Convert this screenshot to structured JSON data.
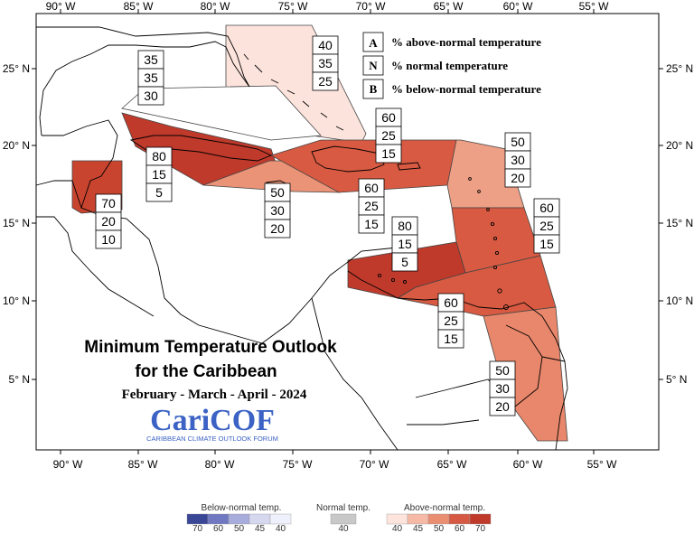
{
  "map": {
    "title_line1": "Minimum Temperature Outlook",
    "title_line2": "for the Caribbean",
    "period": "February - March - April - 2024",
    "logo": {
      "name": "CariCOF",
      "subtitle": "CARIBBEAN CLIMATE OUTLOOK FORUM"
    },
    "axes": {
      "lon_labels": [
        "90° W",
        "85° W",
        "80° W",
        "75° W",
        "70° W",
        "65° W",
        "60° W",
        "55° W"
      ],
      "lat_labels": [
        "25° N",
        "20° N",
        "15° N",
        "10° N",
        "5° N"
      ]
    },
    "key": [
      {
        "letter": "A",
        "text": "% above-normal temperature"
      },
      {
        "letter": "N",
        "text": "% normal temperature"
      },
      {
        "letter": "B",
        "text": "% below-normal temperature"
      }
    ],
    "regions": [
      {
        "id": "florida-bahamas",
        "above": "40",
        "normal": "35",
        "below": "25",
        "color": "#fce3dc"
      },
      {
        "id": "gulf-north",
        "above": "35",
        "normal": "35",
        "below": "30",
        "color": "#ffffff"
      },
      {
        "id": "cuba-cayman",
        "above": "80",
        "normal": "15",
        "below": "5",
        "color": "#bf3a2b"
      },
      {
        "id": "belize",
        "above": "70",
        "normal": "20",
        "below": "10",
        "color": "#c9442f"
      },
      {
        "id": "jamaica-west",
        "above": "50",
        "normal": "30",
        "below": "20",
        "color": "#ea9377"
      },
      {
        "id": "hispaniola-pr",
        "above": "60",
        "normal": "25",
        "below": "15",
        "color": "#d85a42"
      },
      {
        "id": "north-leeward",
        "above": "50",
        "normal": "30",
        "below": "20",
        "color": "#eda086"
      },
      {
        "id": "windward",
        "above": "60",
        "normal": "25",
        "below": "15",
        "color": "#d85a42"
      },
      {
        "id": "south-caribbean",
        "above": "80",
        "normal": "15",
        "below": "5",
        "color": "#bf3a2b"
      },
      {
        "id": "trinidad-venezuela",
        "above": "60",
        "normal": "25",
        "below": "15",
        "color": "#d85a42"
      },
      {
        "id": "guianas",
        "above": "50",
        "normal": "30",
        "below": "20",
        "color": "#e8876b"
      },
      {
        "id": "central-caribbean",
        "above": "60",
        "normal": "25",
        "below": "15",
        "color": "#d85a42"
      }
    ]
  },
  "scale_legend": {
    "below": {
      "title": "Below-normal temp.",
      "ticks": [
        "70",
        "60",
        "50",
        "45",
        "40"
      ],
      "colors": [
        "#3a4696",
        "#6f78c0",
        "#a7acdc",
        "#d6d8f0",
        "#eef0fb"
      ]
    },
    "normal": {
      "title": "Normal temp.",
      "ticks": [
        "40"
      ],
      "colors": [
        "#c8c8c8"
      ]
    },
    "above": {
      "title": "Above-normal temp.",
      "ticks": [
        "40",
        "45",
        "50",
        "60",
        "70"
      ],
      "colors": [
        "#fde5dd",
        "#f5b9a6",
        "#ea8e72",
        "#d65a43",
        "#bf3a2b"
      ]
    }
  }
}
